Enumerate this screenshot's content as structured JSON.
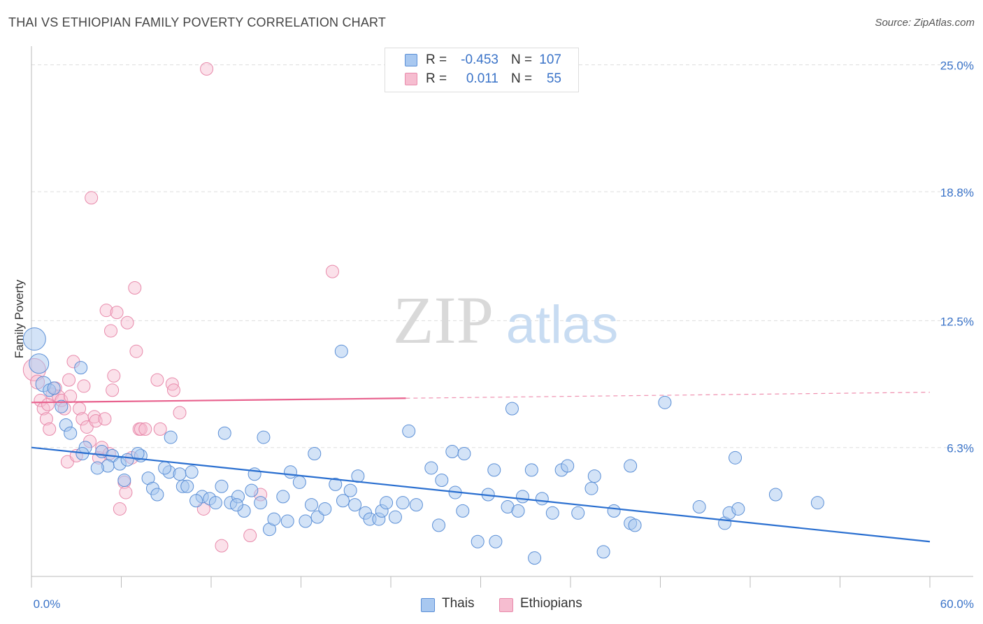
{
  "title": "THAI VS ETHIOPIAN FAMILY POVERTY CORRELATION CHART",
  "source": "Source: ZipAtlas.com",
  "watermark": {
    "zip": "ZIP",
    "atlas": "atlas"
  },
  "legend": {
    "rows": [
      {
        "r_label": "R =",
        "r_value": "-0.453",
        "n_label": "N =",
        "n_value": "107"
      },
      {
        "r_label": "R =",
        "r_value": "0.011",
        "n_label": "N =",
        "n_value": "55"
      }
    ]
  },
  "bottom_legend": [
    "Thais",
    "Ethiopians"
  ],
  "colors": {
    "thai_fill": "#a8c8f0",
    "thai_stroke": "#5b8fd6",
    "thai_line": "#2a6fd0",
    "eth_fill": "#f6bdd0",
    "eth_stroke": "#e88aab",
    "eth_line": "#e8628e",
    "tick_label": "#3a73c8",
    "grid": "#dddddd"
  },
  "chart_data": {
    "type": "scatter",
    "title": "THAI VS ETHIOPIAN FAMILY POVERTY CORRELATION CHART",
    "xlabel": "",
    "ylabel": "Family Poverty",
    "xlim": [
      0,
      60
    ],
    "ylim": [
      0,
      25.5
    ],
    "x_tick_labels": [
      "0.0%",
      "60.0%"
    ],
    "y_ticks": [
      6.3,
      12.5,
      18.8,
      25.0
    ],
    "y_tick_labels": [
      "6.3%",
      "12.5%",
      "18.8%",
      "25.0%"
    ],
    "series": [
      {
        "name": "Thais",
        "r": -0.453,
        "n": 107,
        "trend": {
          "x0": 0,
          "y0": 6.3,
          "x1": 60,
          "y1": 1.7,
          "dash_from": null
        },
        "points": [
          [
            0.2,
            11.6,
            16
          ],
          [
            0.5,
            10.4,
            14
          ],
          [
            0.8,
            9.4,
            11
          ],
          [
            1.2,
            9.1,
            9
          ],
          [
            1.5,
            9.2,
            9
          ],
          [
            2.0,
            8.3,
            9
          ],
          [
            3.3,
            10.2,
            9
          ],
          [
            2.3,
            7.4,
            9
          ],
          [
            2.6,
            7.0,
            9
          ],
          [
            3.6,
            6.3,
            9
          ],
          [
            3.4,
            6.0,
            9
          ],
          [
            4.7,
            6.1,
            9
          ],
          [
            5.4,
            5.9,
            9
          ],
          [
            5.1,
            5.4,
            9
          ],
          [
            4.4,
            5.3,
            9
          ],
          [
            5.9,
            5.5,
            9
          ],
          [
            6.4,
            5.7,
            9
          ],
          [
            7.3,
            5.9,
            9
          ],
          [
            6.2,
            4.7,
            9
          ],
          [
            7.8,
            4.8,
            9
          ],
          [
            8.1,
            4.3,
            9
          ],
          [
            8.4,
            4.0,
            9
          ],
          [
            9.2,
            5.1,
            9
          ],
          [
            9.3,
            6.8,
            9
          ],
          [
            9.9,
            5.0,
            9
          ],
          [
            10.1,
            4.4,
            9
          ],
          [
            10.4,
            4.4,
            9
          ],
          [
            10.7,
            5.1,
            9
          ],
          [
            11.4,
            3.9,
            9
          ],
          [
            11.9,
            3.8,
            9
          ],
          [
            12.3,
            3.6,
            9
          ],
          [
            12.7,
            4.4,
            9
          ],
          [
            12.9,
            7.0,
            9
          ],
          [
            13.3,
            3.6,
            9
          ],
          [
            13.8,
            3.9,
            9
          ],
          [
            14.2,
            3.2,
            9
          ],
          [
            14.7,
            4.2,
            9
          ],
          [
            14.9,
            5.0,
            9
          ],
          [
            15.3,
            3.6,
            9
          ],
          [
            15.5,
            6.8,
            9
          ],
          [
            15.9,
            2.3,
            9
          ],
          [
            16.2,
            2.8,
            9
          ],
          [
            16.8,
            3.9,
            9
          ],
          [
            17.3,
            5.1,
            9
          ],
          [
            17.9,
            4.6,
            9
          ],
          [
            18.3,
            2.7,
            9
          ],
          [
            18.7,
            3.5,
            9
          ],
          [
            18.9,
            6.0,
            9
          ],
          [
            19.1,
            2.9,
            9
          ],
          [
            19.6,
            3.3,
            9
          ],
          [
            20.3,
            4.5,
            9
          ],
          [
            20.8,
            3.7,
            9
          ],
          [
            21.3,
            4.2,
            9
          ],
          [
            21.6,
            3.5,
            9
          ],
          [
            21.8,
            4.9,
            9
          ],
          [
            22.3,
            3.1,
            9
          ],
          [
            22.6,
            2.8,
            9
          ],
          [
            23.2,
            2.8,
            9
          ],
          [
            23.4,
            3.2,
            9
          ],
          [
            23.7,
            3.6,
            9
          ],
          [
            24.3,
            2.9,
            9
          ],
          [
            24.8,
            3.6,
            9
          ],
          [
            25.2,
            7.1,
            9
          ],
          [
            25.7,
            3.5,
            9
          ],
          [
            26.7,
            5.3,
            9
          ],
          [
            27.2,
            2.5,
            9
          ],
          [
            27.4,
            4.7,
            9
          ],
          [
            28.1,
            6.1,
            9
          ],
          [
            28.3,
            4.1,
            9
          ],
          [
            28.8,
            3.2,
            9
          ],
          [
            28.9,
            6.0,
            9
          ],
          [
            29.8,
            1.7,
            9
          ],
          [
            30.5,
            4.0,
            9
          ],
          [
            30.9,
            5.2,
            9
          ],
          [
            31.0,
            1.7,
            9
          ],
          [
            31.8,
            3.4,
            9
          ],
          [
            32.1,
            8.2,
            9
          ],
          [
            32.5,
            3.2,
            9
          ],
          [
            32.8,
            3.9,
            9
          ],
          [
            33.4,
            5.2,
            9
          ],
          [
            33.6,
            0.9,
            9
          ],
          [
            34.1,
            3.8,
            9
          ],
          [
            34.8,
            3.1,
            9
          ],
          [
            35.4,
            5.2,
            9
          ],
          [
            35.8,
            5.4,
            9
          ],
          [
            36.5,
            3.1,
            9
          ],
          [
            37.4,
            4.3,
            9
          ],
          [
            37.6,
            4.9,
            9
          ],
          [
            38.2,
            1.2,
            9
          ],
          [
            38.9,
            3.2,
            9
          ],
          [
            40.0,
            5.4,
            9
          ],
          [
            40.0,
            2.6,
            9
          ],
          [
            40.3,
            2.5,
            9
          ],
          [
            42.3,
            8.5,
            9
          ],
          [
            44.6,
            3.4,
            9
          ],
          [
            46.3,
            2.6,
            9
          ],
          [
            46.6,
            3.1,
            9
          ],
          [
            47.0,
            5.8,
            9
          ],
          [
            47.2,
            3.3,
            9
          ],
          [
            49.7,
            4.0,
            9
          ],
          [
            52.5,
            3.6,
            9
          ],
          [
            8.9,
            5.3,
            9
          ],
          [
            7.1,
            6.0,
            9
          ],
          [
            11.0,
            3.7,
            9
          ],
          [
            13.7,
            3.5,
            9
          ],
          [
            17.1,
            2.7,
            9
          ],
          [
            20.7,
            11.0,
            9
          ]
        ]
      },
      {
        "name": "Ethiopians",
        "r": 0.011,
        "n": 55,
        "trend": {
          "x0": 0,
          "y0": 8.5,
          "x1": 60,
          "y1": 9.0,
          "dash_from": 25
        },
        "points": [
          [
            0.2,
            10.1,
            16
          ],
          [
            0.4,
            9.5,
            10
          ],
          [
            0.6,
            8.6,
            9
          ],
          [
            0.8,
            8.2,
            9
          ],
          [
            1.0,
            7.7,
            9
          ],
          [
            1.2,
            7.2,
            9
          ],
          [
            1.4,
            8.9,
            9
          ],
          [
            1.6,
            9.2,
            9
          ],
          [
            1.8,
            8.8,
            9
          ],
          [
            2.0,
            8.6,
            9
          ],
          [
            2.2,
            8.2,
            9
          ],
          [
            2.4,
            5.6,
            9
          ],
          [
            2.6,
            8.8,
            9
          ],
          [
            2.8,
            10.5,
            9
          ],
          [
            3.0,
            5.9,
            9
          ],
          [
            3.2,
            8.2,
            9
          ],
          [
            3.4,
            7.7,
            9
          ],
          [
            3.5,
            9.3,
            9
          ],
          [
            3.7,
            7.3,
            9
          ],
          [
            3.9,
            6.6,
            9
          ],
          [
            4.0,
            18.5,
            9
          ],
          [
            4.2,
            7.8,
            9
          ],
          [
            4.3,
            7.6,
            9
          ],
          [
            4.5,
            5.8,
            9
          ],
          [
            4.7,
            6.3,
            9
          ],
          [
            4.9,
            7.7,
            9
          ],
          [
            5.0,
            13.0,
            9
          ],
          [
            5.2,
            6.0,
            9
          ],
          [
            5.3,
            12.0,
            9
          ],
          [
            5.4,
            9.1,
            9
          ],
          [
            5.5,
            9.8,
            9
          ],
          [
            5.7,
            12.9,
            9
          ],
          [
            5.9,
            3.3,
            9
          ],
          [
            6.2,
            4.6,
            9
          ],
          [
            6.3,
            4.1,
            9
          ],
          [
            6.4,
            12.4,
            9
          ],
          [
            6.7,
            5.8,
            9
          ],
          [
            6.9,
            14.1,
            9
          ],
          [
            7.0,
            11.0,
            9
          ],
          [
            7.2,
            7.2,
            9
          ],
          [
            7.3,
            7.2,
            9
          ],
          [
            7.6,
            7.2,
            9
          ],
          [
            8.4,
            9.6,
            9
          ],
          [
            8.6,
            7.2,
            9
          ],
          [
            9.4,
            9.4,
            9
          ],
          [
            9.5,
            9.1,
            9
          ],
          [
            9.9,
            8.0,
            9
          ],
          [
            11.5,
            3.3,
            9
          ],
          [
            11.7,
            24.8,
            9
          ],
          [
            12.7,
            1.5,
            9
          ],
          [
            14.6,
            2.0,
            9
          ],
          [
            15.3,
            4.0,
            9
          ],
          [
            20.1,
            14.9,
            9
          ],
          [
            1.1,
            8.4,
            9
          ],
          [
            2.5,
            9.6,
            9
          ]
        ]
      }
    ]
  }
}
